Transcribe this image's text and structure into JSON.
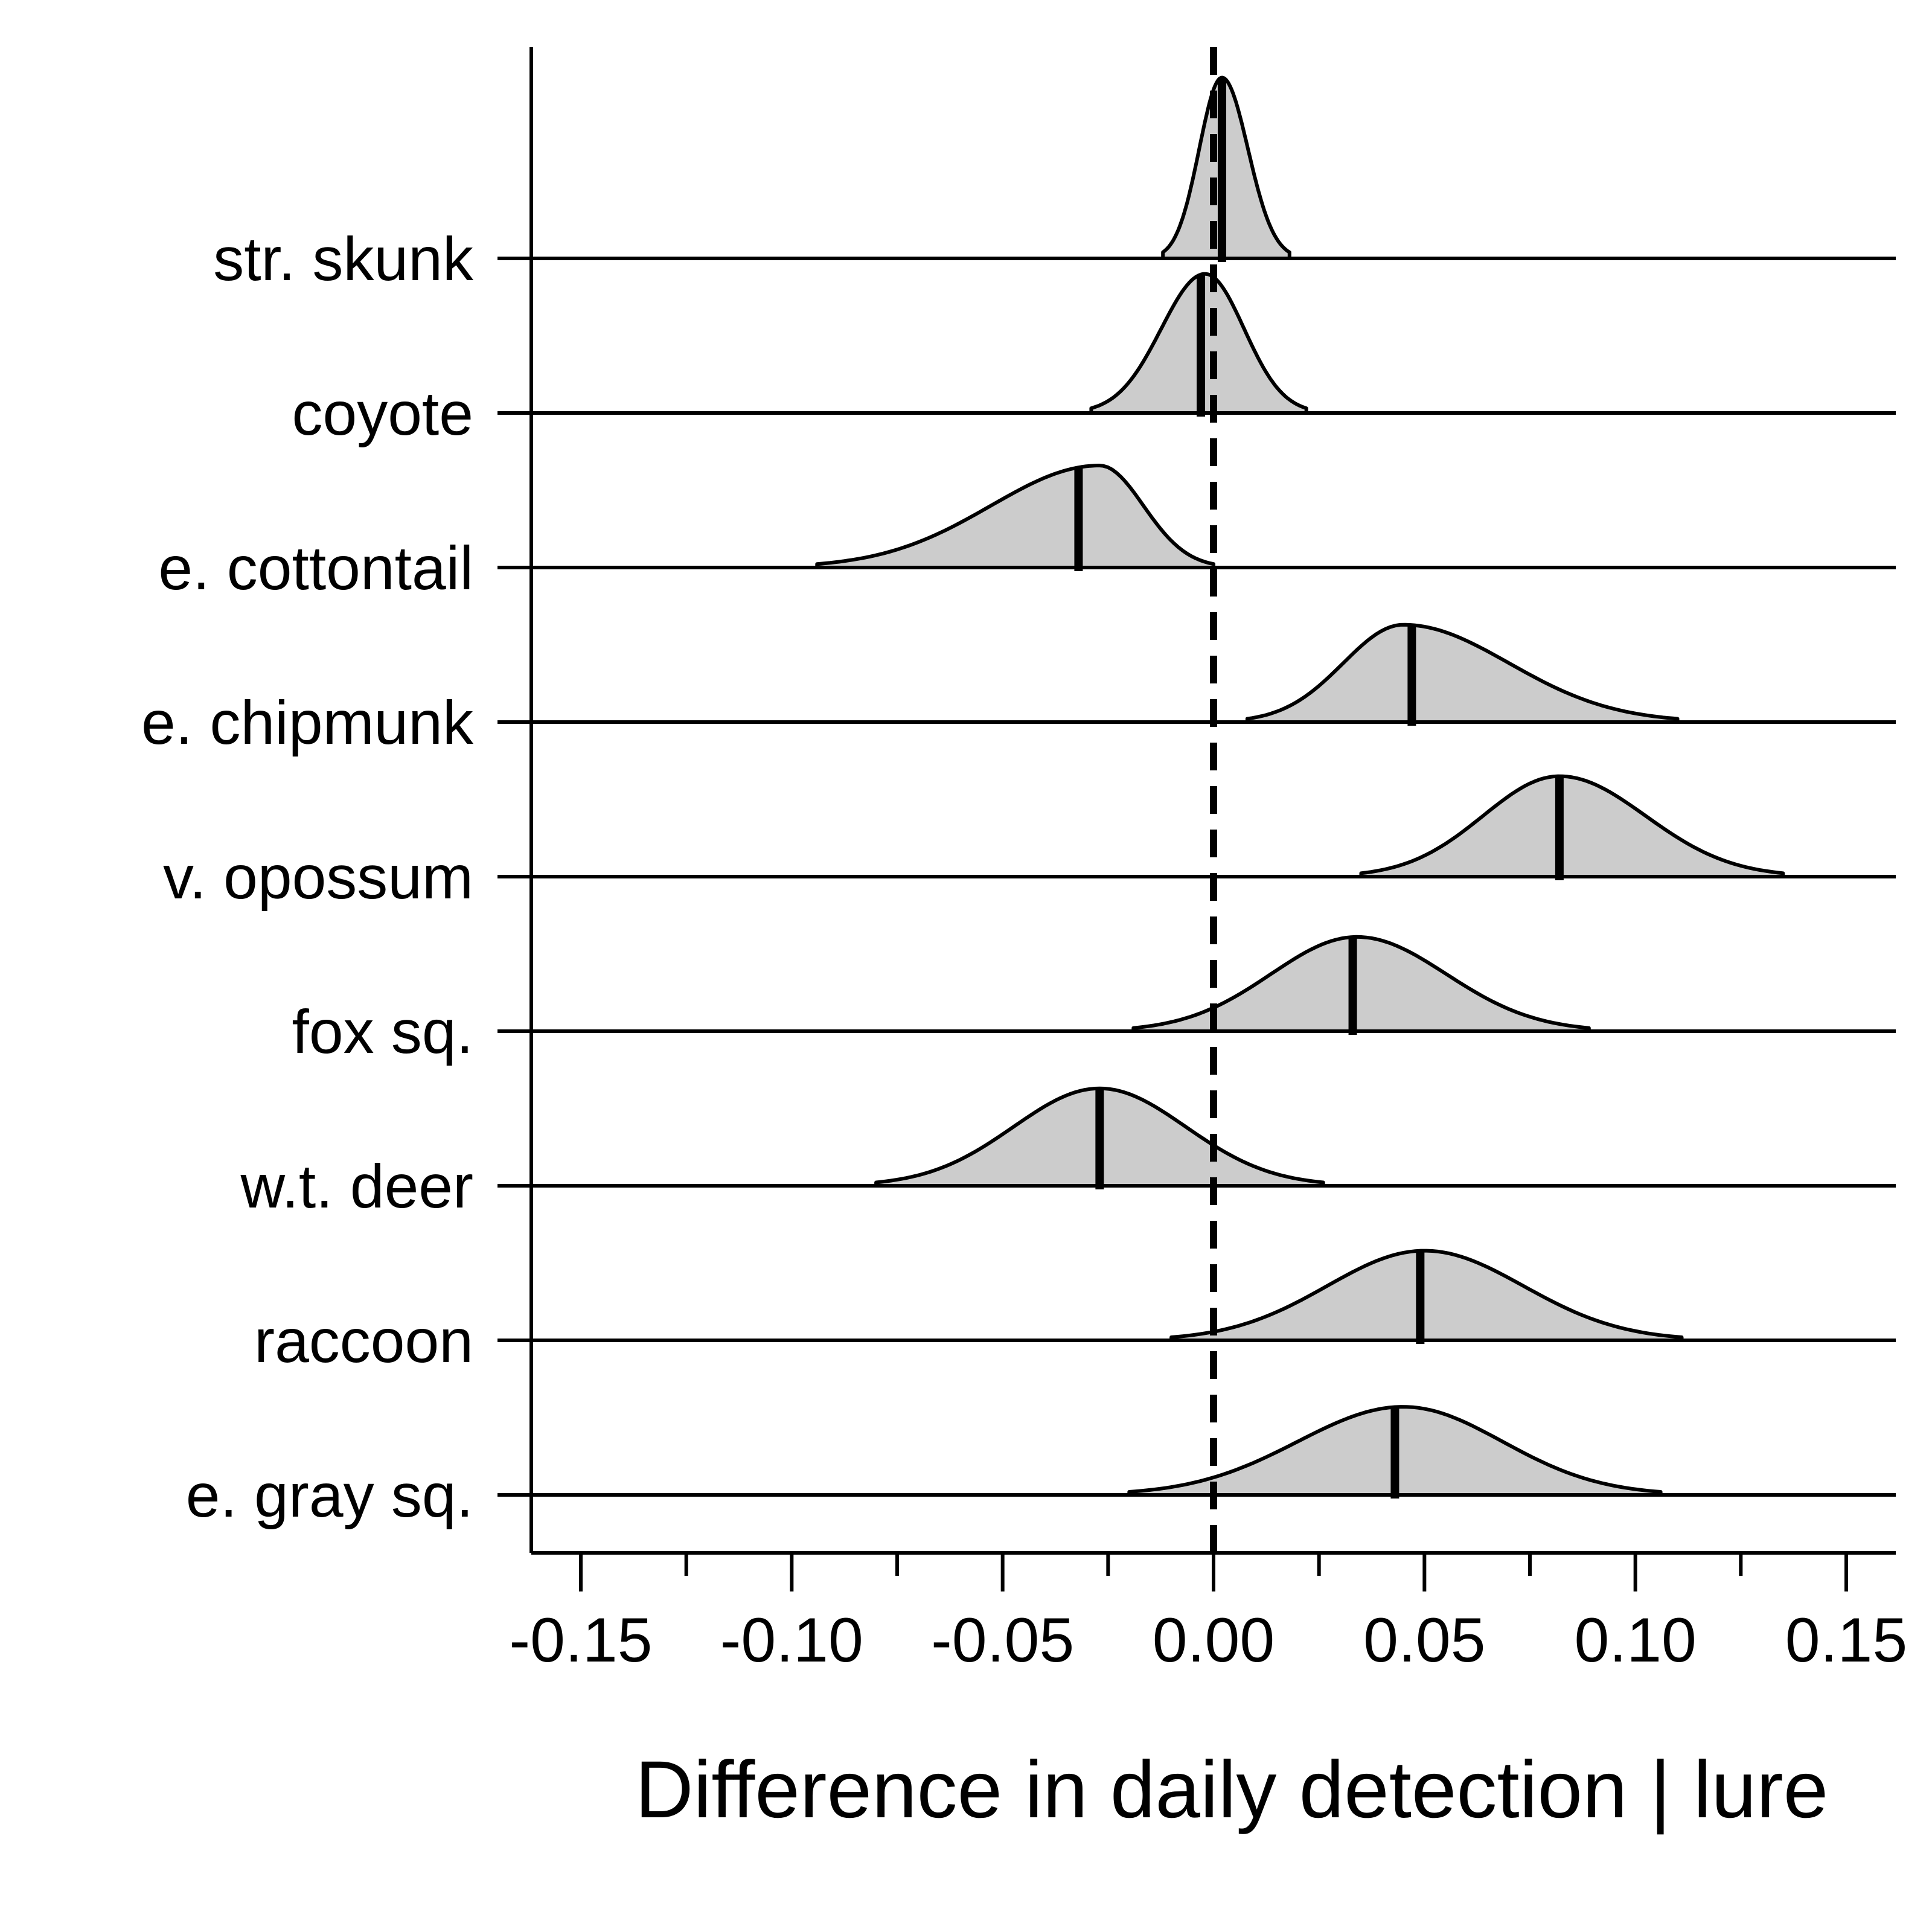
{
  "chart_data": {
    "type": "ridgeline-density",
    "title": "",
    "xlabel": "Difference in daily detection | lure",
    "ylabel": "",
    "xlim": [
      -0.165,
      0.165
    ],
    "x_ticks": [
      -0.15,
      -0.1,
      -0.05,
      0.0,
      0.05,
      0.1,
      0.15
    ],
    "x_tick_labels": [
      "-0.15",
      "-0.10",
      "-0.05",
      "0.00",
      "0.05",
      "0.10",
      "0.15"
    ],
    "x_minor_ticks": [
      -0.125,
      -0.075,
      -0.025,
      0.025,
      0.075,
      0.125
    ],
    "reference_line": {
      "x": 0,
      "style": "dashed"
    },
    "grid": false,
    "fill_color": "#cccccc",
    "line_color": "#000000",
    "series": [
      {
        "name": "str. skunk",
        "lower": -0.012,
        "upper": 0.018,
        "median": 0.002,
        "mode": 0.002,
        "height": 1.17
      },
      {
        "name": "coyote",
        "lower": -0.029,
        "upper": 0.022,
        "median": -0.003,
        "mode": -0.002,
        "height": 0.9
      },
      {
        "name": "e. cottontail",
        "lower": -0.094,
        "upper": 0.0,
        "median": -0.032,
        "mode": -0.027,
        "height": 0.66
      },
      {
        "name": "e. chipmunk",
        "lower": 0.008,
        "upper": 0.11,
        "median": 0.047,
        "mode": 0.045,
        "height": 0.63
      },
      {
        "name": "v. opossum",
        "lower": 0.035,
        "upper": 0.135,
        "median": 0.082,
        "mode": 0.082,
        "height": 0.65
      },
      {
        "name": "fox sq.",
        "lower": -0.019,
        "upper": 0.089,
        "median": 0.033,
        "mode": 0.034,
        "height": 0.61
      },
      {
        "name": "w.t. deer",
        "lower": -0.08,
        "upper": 0.026,
        "median": -0.027,
        "mode": -0.027,
        "height": 0.63
      },
      {
        "name": "raccoon",
        "lower": -0.01,
        "upper": 0.111,
        "median": 0.049,
        "mode": 0.05,
        "height": 0.58
      },
      {
        "name": "e. gray sq.",
        "lower": -0.02,
        "upper": 0.106,
        "median": 0.043,
        "mode": 0.045,
        "height": 0.57
      }
    ]
  }
}
